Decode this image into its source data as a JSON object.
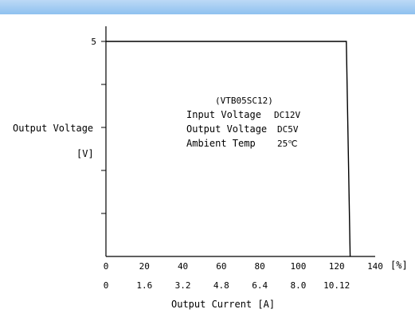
{
  "header_color": "#98c7f1",
  "chart_data": {
    "type": "line",
    "ylabel": "Output Voltage",
    "yunit": "[V]",
    "xlabel_pct_unit": "[%]",
    "xlabel_current": "Output Current [A]",
    "y_ticks": [
      {
        "value": 5,
        "label": "5"
      }
    ],
    "y_minor_ticks": [
      1,
      2,
      3,
      4
    ],
    "ylim": [
      0,
      5.5
    ],
    "xlim": [
      0,
      140
    ],
    "x_ticks_pct": [
      "0",
      "20",
      "40",
      "60",
      "80",
      "100",
      "120",
      "140"
    ],
    "x_ticks_current": [
      "0",
      "1.6",
      "3.2",
      "4.8",
      "6.4",
      "8.0",
      "10.12"
    ],
    "series": [
      {
        "points": [
          [
            0,
            5
          ],
          [
            125,
            5
          ],
          [
            127,
            0
          ]
        ]
      }
    ],
    "annotation": {
      "model": "(VTB05SC12)",
      "lines": [
        {
          "label": "Input Voltage",
          "value": "DC12V"
        },
        {
          "label": "Output Voltage",
          "value": "DC5V"
        },
        {
          "label": "Ambient Temp",
          "value": "25℃"
        }
      ]
    }
  }
}
